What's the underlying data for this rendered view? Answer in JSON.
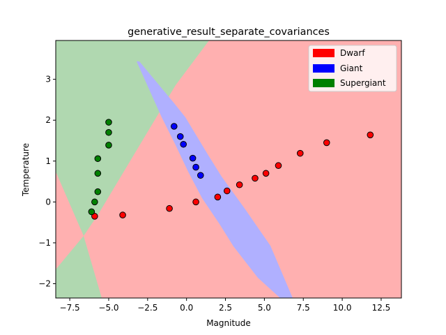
{
  "chart_data": {
    "type": "scatter",
    "title": "generative_result_separate_covariances",
    "xlabel": "Magnitude",
    "ylabel": "Temperature",
    "xlim": [
      -8.4,
      13.8
    ],
    "ylim": [
      -2.35,
      3.95
    ],
    "xticks": [
      -7.5,
      -5.0,
      -2.5,
      0.0,
      2.5,
      5.0,
      7.5,
      10.0,
      12.5
    ],
    "xtick_labels": [
      "−7.5",
      "−5.0",
      "−2.5",
      "0.0",
      "2.5",
      "5.0",
      "7.5",
      "10.0",
      "12.5"
    ],
    "yticks": [
      -2,
      -1,
      0,
      1,
      2,
      3
    ],
    "ytick_labels": [
      "−2",
      "−1",
      "0",
      "1",
      "2",
      "3"
    ],
    "grid": false,
    "legend_position": "top-right",
    "background_regions": [
      {
        "name": "Dwarf",
        "color": "#ffb0b0"
      },
      {
        "name": "Giant",
        "color": "#b0b0ff"
      },
      {
        "name": "Supergiant",
        "color": "#b0d8b0"
      }
    ],
    "series": [
      {
        "name": "Dwarf",
        "color": "#ff0000",
        "points": [
          {
            "x": -5.9,
            "y": -0.35
          },
          {
            "x": -4.1,
            "y": -0.32
          },
          {
            "x": -1.1,
            "y": -0.16
          },
          {
            "x": 0.6,
            "y": 0.0
          },
          {
            "x": 2.0,
            "y": 0.12
          },
          {
            "x": 2.6,
            "y": 0.27
          },
          {
            "x": 3.4,
            "y": 0.42
          },
          {
            "x": 4.4,
            "y": 0.58
          },
          {
            "x": 5.1,
            "y": 0.7
          },
          {
            "x": 5.9,
            "y": 0.89
          },
          {
            "x": 7.3,
            "y": 1.19
          },
          {
            "x": 9.0,
            "y": 1.45
          },
          {
            "x": 11.8,
            "y": 1.64
          }
        ]
      },
      {
        "name": "Giant",
        "color": "#0000ff",
        "points": [
          {
            "x": -0.8,
            "y": 1.85
          },
          {
            "x": -0.4,
            "y": 1.6
          },
          {
            "x": -0.2,
            "y": 1.41
          },
          {
            "x": 0.4,
            "y": 1.07
          },
          {
            "x": 0.6,
            "y": 0.85
          },
          {
            "x": 0.9,
            "y": 0.65
          }
        ]
      },
      {
        "name": "Supergiant",
        "color": "#008000",
        "points": [
          {
            "x": -5.0,
            "y": 1.95
          },
          {
            "x": -5.0,
            "y": 1.7
          },
          {
            "x": -5.0,
            "y": 1.39
          },
          {
            "x": -5.7,
            "y": 1.06
          },
          {
            "x": -5.7,
            "y": 0.7
          },
          {
            "x": -5.7,
            "y": 0.25
          },
          {
            "x": -5.9,
            "y": 0.0
          },
          {
            "x": -6.1,
            "y": -0.24
          }
        ]
      }
    ],
    "legend": [
      {
        "label": "Dwarf",
        "color": "#ff0000"
      },
      {
        "label": "Giant",
        "color": "#0000ff"
      },
      {
        "label": "Supergiant",
        "color": "#008000"
      }
    ]
  }
}
